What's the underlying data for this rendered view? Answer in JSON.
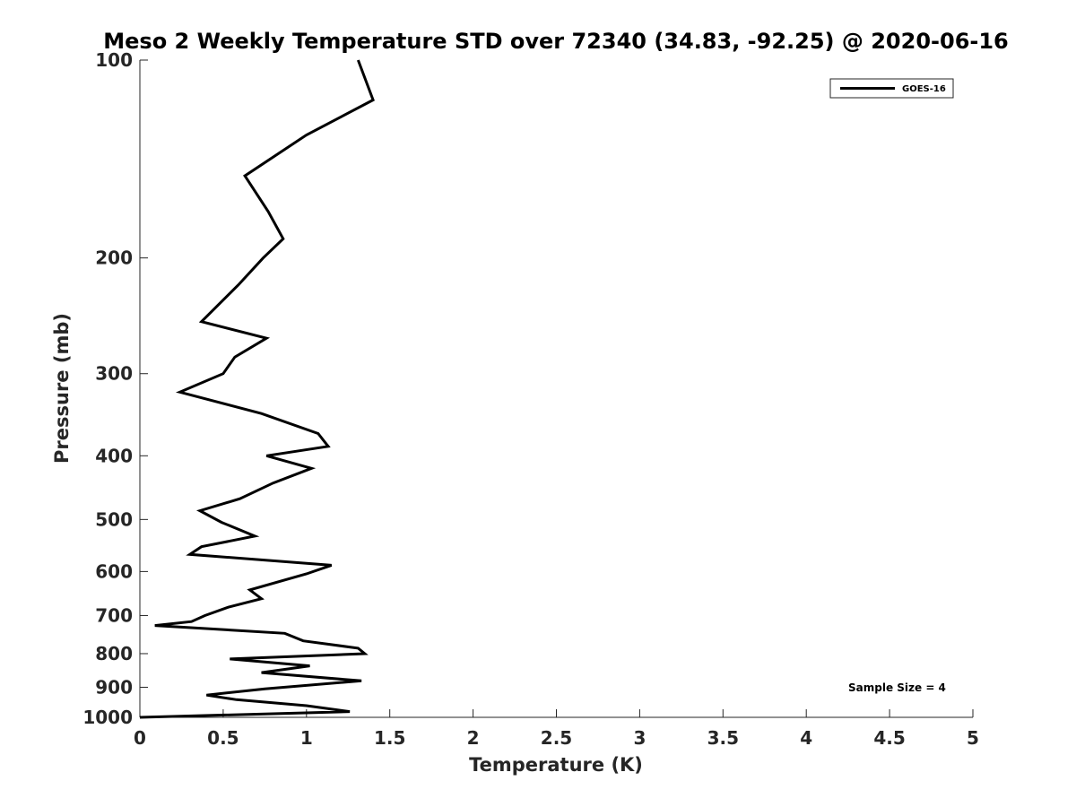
{
  "chart_data": {
    "type": "line",
    "title": "Meso 2 Weekly Temperature STD over 72340 (34.83, -92.25) @ 2020-06-16",
    "xlabel": "Temperature (K)",
    "ylabel": "Pressure (mb)",
    "xlim": [
      0,
      5
    ],
    "ylim": [
      100,
      1000
    ],
    "y_scale": "log",
    "y_reversed": true,
    "x_ticks": [
      "0",
      "0.5",
      "1",
      "1.5",
      "2",
      "2.5",
      "3",
      "3.5",
      "4",
      "4.5",
      "5"
    ],
    "y_ticks": [
      "100",
      "200",
      "300",
      "400",
      "500",
      "600",
      "700",
      "800",
      "900",
      "1000"
    ],
    "grid": false,
    "legend_position": "top-right",
    "series": [
      {
        "name": "GOES-16",
        "color": "#000000",
        "points": [
          [
            1.31,
            100
          ],
          [
            1.4,
            115
          ],
          [
            1.0,
            130
          ],
          [
            0.63,
            150
          ],
          [
            0.77,
            170
          ],
          [
            0.86,
            187
          ],
          [
            0.74,
            200
          ],
          [
            0.59,
            220
          ],
          [
            0.37,
            250
          ],
          [
            0.76,
            265
          ],
          [
            0.57,
            283
          ],
          [
            0.5,
            300
          ],
          [
            0.24,
            320
          ],
          [
            0.73,
            345
          ],
          [
            1.07,
            370
          ],
          [
            1.13,
            387
          ],
          [
            0.76,
            400
          ],
          [
            1.03,
            418
          ],
          [
            0.8,
            440
          ],
          [
            0.6,
            465
          ],
          [
            0.36,
            485
          ],
          [
            0.49,
            505
          ],
          [
            0.69,
            530
          ],
          [
            0.37,
            550
          ],
          [
            0.3,
            565
          ],
          [
            1.15,
            587
          ],
          [
            1.0,
            605
          ],
          [
            0.66,
            640
          ],
          [
            0.73,
            660
          ],
          [
            0.53,
            680
          ],
          [
            0.39,
            700
          ],
          [
            0.31,
            715
          ],
          [
            0.09,
            725
          ],
          [
            0.87,
            745
          ],
          [
            0.98,
            765
          ],
          [
            1.31,
            785
          ],
          [
            1.35,
            800
          ],
          [
            0.54,
            815
          ],
          [
            1.02,
            835
          ],
          [
            0.73,
            855
          ],
          [
            1.33,
            880
          ],
          [
            0.75,
            905
          ],
          [
            0.4,
            925
          ],
          [
            0.58,
            940
          ],
          [
            1.0,
            960
          ],
          [
            1.26,
            980
          ],
          [
            0.0,
            1000
          ]
        ]
      }
    ],
    "annotations": [
      "Sample Size = 4"
    ]
  }
}
